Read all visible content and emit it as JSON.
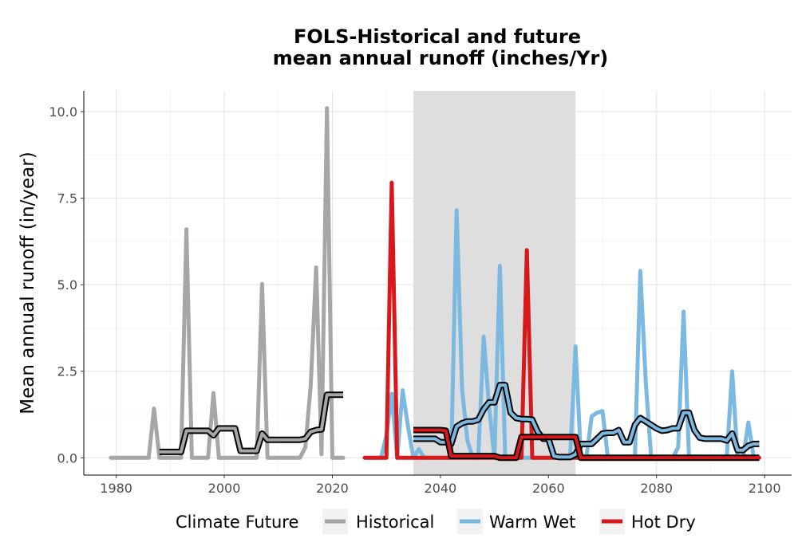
{
  "chart_data": {
    "type": "line",
    "title_line1": "FOLS-Historical and future",
    "title_line2": "mean annual runoff (inches/Yr)",
    "xlabel": "",
    "ylabel": "Mean annual runoff (in/year)",
    "xlim": [
      1974,
      2105
    ],
    "ylim": [
      -0.5,
      10.6
    ],
    "x_ticks": [
      1980,
      2000,
      2020,
      2040,
      2060,
      2080,
      2100
    ],
    "y_ticks": [
      0.0,
      2.5,
      5.0,
      7.5,
      10.0
    ],
    "y_tick_labels": [
      "0.0",
      "2.5",
      "5.0",
      "7.5",
      "10.0"
    ],
    "grid": true,
    "shaded_period": {
      "x_start": 2035,
      "x_end": 2065,
      "color": "#dcdcdc"
    },
    "legend": {
      "title": "Climate Future",
      "position": "bottom",
      "entries": [
        "Historical",
        "Warm Wet",
        "Hot Dry"
      ]
    },
    "series": [
      {
        "name": "Historical",
        "color": "#a6a6a6",
        "x": [
          1979,
          1980,
          1981,
          1982,
          1983,
          1984,
          1985,
          1986,
          1987,
          1988,
          1989,
          1990,
          1991,
          1992,
          1993,
          1994,
          1995,
          1996,
          1997,
          1998,
          1999,
          2000,
          2001,
          2002,
          2003,
          2004,
          2005,
          2006,
          2007,
          2008,
          2009,
          2010,
          2011,
          2012,
          2013,
          2014,
          2015,
          2016,
          2017,
          2018,
          2019,
          2020,
          2021,
          2022
        ],
        "y": [
          0,
          0,
          0,
          0,
          0,
          0,
          0,
          0,
          1.42,
          0,
          0,
          0,
          0,
          0,
          6.6,
          0,
          0,
          0,
          0,
          1.87,
          0,
          0,
          0,
          0,
          0,
          0,
          0,
          0,
          5.02,
          0,
          0,
          0,
          0,
          0,
          0,
          0,
          0.3,
          2.1,
          5.5,
          0.1,
          10.1,
          0,
          0,
          0
        ]
      },
      {
        "name": "Warm Wet",
        "color": "#7cb9e0",
        "x": [
          2026,
          2027,
          2028,
          2029,
          2030,
          2031,
          2032,
          2033,
          2034,
          2035,
          2036,
          2037,
          2038,
          2039,
          2040,
          2041,
          2042,
          2043,
          2044,
          2045,
          2046,
          2047,
          2048,
          2049,
          2050,
          2051,
          2052,
          2053,
          2054,
          2055,
          2056,
          2057,
          2058,
          2059,
          2060,
          2061,
          2062,
          2063,
          2064,
          2065,
          2066,
          2067,
          2068,
          2069,
          2070,
          2071,
          2072,
          2073,
          2074,
          2075,
          2076,
          2077,
          2078,
          2079,
          2080,
          2081,
          2082,
          2083,
          2084,
          2085,
          2086,
          2087,
          2088,
          2089,
          2090,
          2091,
          2092,
          2093,
          2094,
          2095,
          2096,
          2097,
          2098,
          2099
        ],
        "y": [
          0,
          0,
          0,
          0,
          0.65,
          1.85,
          0,
          1.95,
          0.9,
          0,
          0.25,
          0,
          0,
          0,
          0,
          0,
          0,
          7.15,
          2.0,
          0.5,
          0,
          0,
          3.5,
          1.5,
          0,
          5.55,
          0,
          0,
          0,
          0,
          0,
          0,
          0,
          0,
          0,
          0,
          0,
          0,
          0,
          3.22,
          0,
          0,
          1.2,
          1.3,
          1.35,
          0,
          0,
          0,
          0,
          0,
          0,
          5.4,
          2.2,
          0,
          0,
          0,
          0,
          0,
          0.3,
          4.22,
          0,
          0,
          0,
          0,
          0,
          0,
          0,
          0,
          2.5,
          0,
          0,
          1.02,
          0,
          0
        ]
      },
      {
        "name": "Hot Dry",
        "color": "#d7191c",
        "x": [
          2026,
          2027,
          2028,
          2029,
          2030,
          2031,
          2032,
          2033,
          2034,
          2035,
          2036,
          2037,
          2038,
          2039,
          2040,
          2041,
          2042,
          2043,
          2044,
          2045,
          2046,
          2047,
          2048,
          2049,
          2050,
          2051,
          2052,
          2053,
          2054,
          2055,
          2056,
          2057,
          2058,
          2059,
          2060,
          2061,
          2062,
          2063,
          2064,
          2065,
          2066,
          2067,
          2068,
          2069,
          2070,
          2071,
          2072,
          2073,
          2074,
          2075,
          2076,
          2077,
          2078,
          2079,
          2080,
          2081,
          2082,
          2083,
          2084,
          2085,
          2086,
          2087,
          2088,
          2089,
          2090,
          2091,
          2092,
          2093,
          2094,
          2095,
          2096,
          2097,
          2098,
          2099
        ],
        "y": [
          0,
          0,
          0,
          0,
          0,
          7.95,
          0,
          0,
          0,
          0,
          0,
          0,
          0,
          0,
          0,
          0,
          0,
          0,
          0,
          0,
          0,
          0,
          0,
          0,
          0,
          0,
          0,
          0,
          0,
          0,
          6.0,
          0,
          0,
          0,
          0,
          0,
          0,
          0,
          0,
          0,
          0,
          0,
          0,
          0,
          0,
          0,
          0,
          0,
          0,
          0,
          0,
          0,
          0,
          0,
          0,
          0,
          0,
          0,
          0,
          0,
          0,
          0,
          0,
          0,
          0,
          0,
          0,
          0,
          0,
          0,
          0,
          0,
          0,
          0
        ]
      }
    ],
    "moving_average": [
      {
        "name": "Historical",
        "color": "#a6a6a6",
        "x": [
          1988,
          1992,
          1993,
          1997,
          1998,
          1999,
          2000,
          2001,
          2002,
          2003,
          2004,
          2005,
          2006,
          2007,
          2008,
          2014,
          2015,
          2016,
          2017,
          2018,
          2019,
          2022
        ],
        "y": [
          0.17,
          0.17,
          0.78,
          0.78,
          0.65,
          0.85,
          0.85,
          0.85,
          0.85,
          0.2,
          0.2,
          0.2,
          0.2,
          0.7,
          0.52,
          0.52,
          0.55,
          0.75,
          0.8,
          0.82,
          1.82,
          1.82
        ]
      },
      {
        "name": "Warm Wet",
        "color": "#7cb9e0",
        "x": [
          2035,
          2039,
          2040,
          2041,
          2042,
          2043,
          2044,
          2045,
          2046,
          2047,
          2048,
          2049,
          2050,
          2051,
          2052,
          2053,
          2054,
          2055,
          2056,
          2057,
          2058,
          2059,
          2060,
          2061,
          2062,
          2063,
          2064,
          2065,
          2066,
          2067,
          2068,
          2069,
          2070,
          2071,
          2072,
          2073,
          2074,
          2075,
          2076,
          2077,
          2078,
          2079,
          2080,
          2081,
          2082,
          2083,
          2084,
          2085,
          2086,
          2087,
          2088,
          2089,
          2090,
          2091,
          2092,
          2093,
          2094,
          2095,
          2096,
          2097,
          2098,
          2099
        ],
        "y": [
          0.55,
          0.55,
          0.45,
          0.45,
          0.4,
          0.9,
          1.0,
          1.05,
          1.05,
          1.1,
          1.4,
          1.6,
          1.6,
          2.1,
          2.1,
          1.3,
          1.15,
          1.12,
          1.12,
          1.1,
          0.75,
          0.55,
          0.55,
          0.05,
          0.02,
          0.02,
          0.02,
          0.1,
          0.4,
          0.4,
          0.4,
          0.55,
          0.7,
          0.72,
          0.72,
          0.8,
          0.45,
          0.45,
          0.95,
          1.15,
          1.05,
          0.95,
          0.85,
          0.78,
          0.8,
          0.85,
          0.85,
          1.3,
          1.3,
          0.8,
          0.58,
          0.55,
          0.55,
          0.55,
          0.55,
          0.5,
          0.7,
          0.22,
          0.22,
          0.35,
          0.4,
          0.4
        ]
      },
      {
        "name": "Hot Dry",
        "color": "#d7191c",
        "x": [
          2035,
          2040,
          2041,
          2042,
          2043,
          2044,
          2045,
          2046,
          2047,
          2048,
          2049,
          2050,
          2051,
          2052,
          2053,
          2054,
          2055,
          2056,
          2064,
          2065,
          2066,
          2099
        ],
        "y": [
          0.8,
          0.8,
          0.78,
          0.05,
          0.05,
          0.05,
          0.05,
          0.05,
          0.05,
          0.05,
          0.05,
          0.05,
          0.0,
          0.0,
          0.0,
          0.0,
          0.6,
          0.6,
          0.6,
          0.6,
          0.0,
          0.0
        ]
      }
    ]
  }
}
